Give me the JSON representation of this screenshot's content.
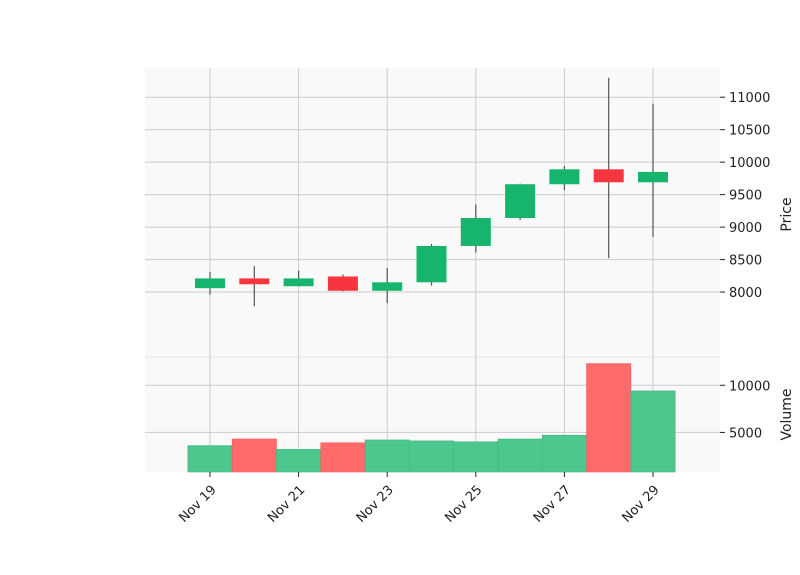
{
  "chart_data": {
    "type": "candlestick",
    "dates": [
      "Nov 19",
      "Nov 20",
      "Nov 21",
      "Nov 22",
      "Nov 23",
      "Nov 24",
      "Nov 25",
      "Nov 26",
      "Nov 27",
      "Nov 28",
      "Nov 29"
    ],
    "x_tick_labels": [
      "Nov 19",
      "Nov 21",
      "Nov 23",
      "Nov 25",
      "Nov 27",
      "Nov 29"
    ],
    "ohlc": [
      {
        "open": 8060,
        "high": 8310,
        "low": 7960,
        "close": 8210
      },
      {
        "open": 8210,
        "high": 8400,
        "low": 7780,
        "close": 8120
      },
      {
        "open": 8090,
        "high": 8330,
        "low": 8090,
        "close": 8210
      },
      {
        "open": 8240,
        "high": 8270,
        "low": 8010,
        "close": 8020
      },
      {
        "open": 8020,
        "high": 8370,
        "low": 7830,
        "close": 8150
      },
      {
        "open": 8150,
        "high": 8740,
        "low": 8100,
        "close": 8710
      },
      {
        "open": 8710,
        "high": 9350,
        "low": 8610,
        "close": 9140
      },
      {
        "open": 9140,
        "high": 9670,
        "low": 9110,
        "close": 9660
      },
      {
        "open": 9660,
        "high": 9940,
        "low": 9570,
        "close": 9890
      },
      {
        "open": 9890,
        "high": 11300,
        "low": 8520,
        "close": 9690
      },
      {
        "open": 9690,
        "high": 10900,
        "low": 8850,
        "close": 9850
      }
    ],
    "volume": [
      3600,
      4300,
      3200,
      3900,
      4200,
      4100,
      4000,
      4300,
      4700,
      12300,
      9400
    ],
    "price_axis": {
      "label": "Price",
      "ylim": [
        7000,
        11450
      ],
      "ticks": [
        8000,
        8500,
        9000,
        9500,
        10000,
        10500,
        11000
      ]
    },
    "volume_axis": {
      "label": "Volume",
      "ylim": [
        800,
        13000
      ],
      "ticks": [
        5000,
        10000
      ]
    },
    "colors": {
      "up": "#16b46c",
      "down": "#f7353f",
      "volume_up": "#4cc78e",
      "volume_down": "#ff6a6b",
      "wick": "#555555",
      "panel_bg": "#f9f9f9",
      "grid": "#cccccc"
    },
    "grid": true,
    "y_axis_side": "right"
  }
}
